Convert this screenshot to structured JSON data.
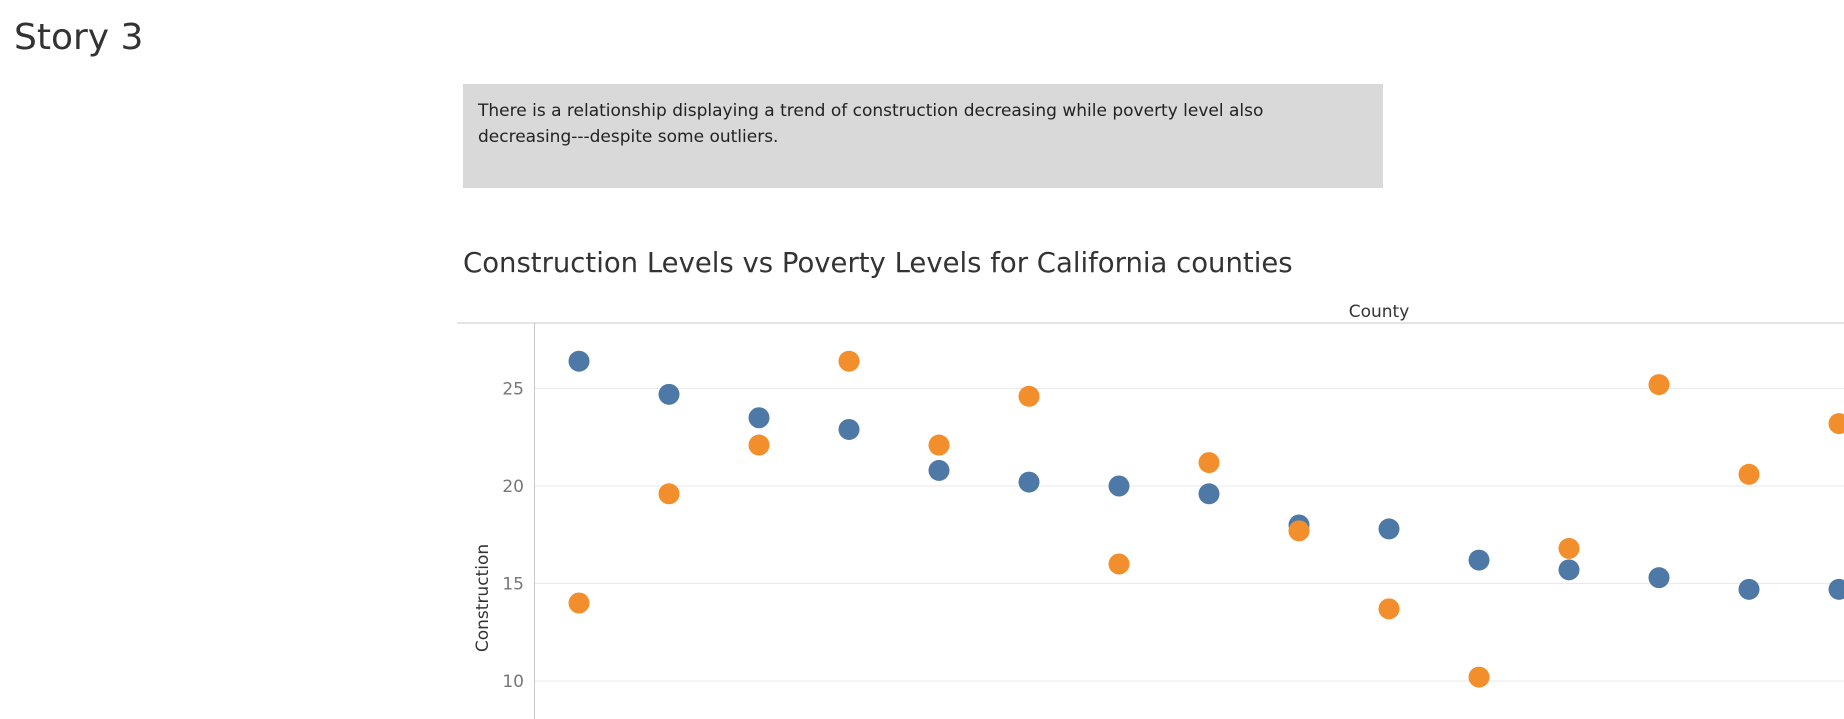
{
  "story": {
    "title": "Story 3"
  },
  "caption": {
    "text": "There is a relationship displaying a trend of construction decreasing while poverty level also decreasing---despite some outliers."
  },
  "chart_data": {
    "type": "scatter",
    "title": "Construction Levels vs Poverty Levels for California counties",
    "column_header": "County",
    "ylabel": "Construction",
    "xlabel": "",
    "y_ticks": [
      10,
      15,
      20,
      25
    ],
    "ylim": [
      8.1,
      28.3
    ],
    "grid": true,
    "legend": "none",
    "columns": 15,
    "series": [
      {
        "color": "#4e79a7",
        "values": [
          26.4,
          24.7,
          23.5,
          22.9,
          20.8,
          20.2,
          20.0,
          19.6,
          18.0,
          17.8,
          16.2,
          15.7,
          15.3,
          14.7,
          14.7
        ]
      },
      {
        "color": "#f28e2b",
        "values": [
          14.0,
          19.6,
          22.1,
          26.4,
          22.1,
          24.6,
          16.0,
          21.2,
          17.7,
          13.7,
          10.2,
          16.8,
          25.2,
          20.6,
          23.2
        ]
      }
    ]
  }
}
